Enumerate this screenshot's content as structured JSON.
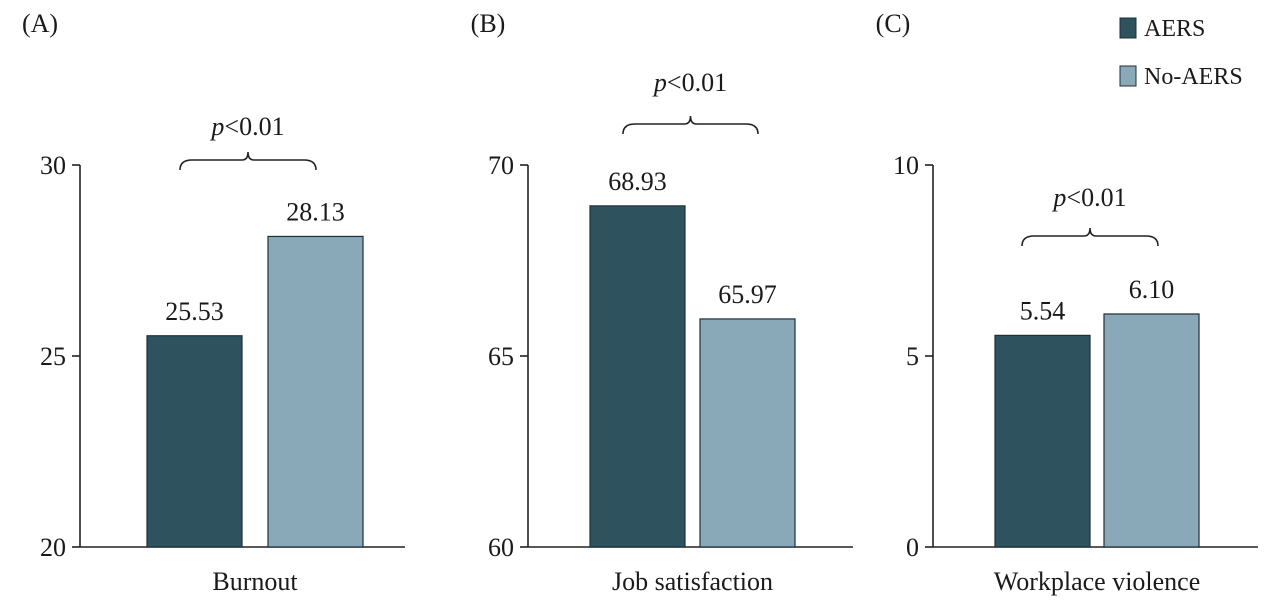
{
  "legend": {
    "position": "top-right",
    "items": [
      {
        "label": "AERS",
        "color": "#2e535f"
      },
      {
        "label": "No-AERS",
        "color": "#89a9b8"
      }
    ]
  },
  "chart_data": [
    {
      "type": "bar",
      "panel_label": "(A)",
      "categories": [
        "Burnout"
      ],
      "series": [
        {
          "name": "AERS",
          "values": [
            25.53
          ]
        },
        {
          "name": "No-AERS",
          "values": [
            28.13
          ]
        }
      ],
      "data_labels": [
        "25.53",
        "28.13"
      ],
      "ylim": [
        20,
        30
      ],
      "yticks": [
        "20",
        "25",
        "30"
      ],
      "annotation": {
        "italic": "p",
        "text": "<0.01"
      },
      "grid": false
    },
    {
      "type": "bar",
      "panel_label": "(B)",
      "categories": [
        "Job satisfaction"
      ],
      "series": [
        {
          "name": "AERS",
          "values": [
            68.93
          ]
        },
        {
          "name": "No-AERS",
          "values": [
            65.97
          ]
        }
      ],
      "data_labels": [
        "68.93",
        "65.97"
      ],
      "ylim": [
        60,
        70
      ],
      "yticks": [
        "60",
        "65",
        "70"
      ],
      "annotation": {
        "italic": "p",
        "text": "<0.01"
      },
      "grid": false
    },
    {
      "type": "bar",
      "panel_label": "(C)",
      "categories": [
        "Workplace violence"
      ],
      "series": [
        {
          "name": "AERS",
          "values": [
            5.54
          ]
        },
        {
          "name": "No-AERS",
          "values": [
            6.1
          ]
        }
      ],
      "data_labels": [
        "5.54",
        "6.10"
      ],
      "ylim": [
        0,
        10
      ],
      "yticks": [
        "0",
        "5",
        "10"
      ],
      "annotation": {
        "italic": "p",
        "text": "<0.01"
      },
      "grid": false
    }
  ]
}
